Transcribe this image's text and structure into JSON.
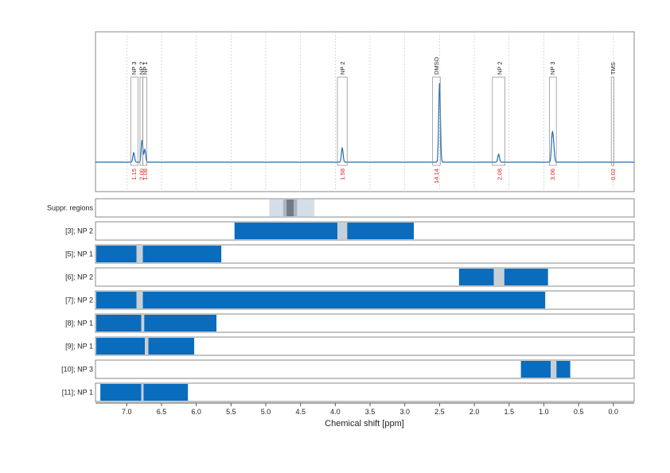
{
  "colors": {
    "spectrum": "#1f6fb5",
    "bar": "#0a6cbd",
    "peak_marker": "#c7d0d9",
    "suppr_light": "#d5dee7",
    "suppr_mid": "#a9b5c1",
    "suppr_dark": "#6f7a84",
    "integral_text": "#e0201a",
    "frame": "#888888",
    "grid": "#c8c8c8"
  },
  "chart_data": {
    "type": "line",
    "xlabel": "Chemical shift [ppm]",
    "x_reversed": true,
    "xlim": [
      7.45,
      -0.3
    ],
    "xticks": [
      7.0,
      6.5,
      6.0,
      5.5,
      5.0,
      4.5,
      4.0,
      3.5,
      3.0,
      2.5,
      2.0,
      1.5,
      1.0,
      0.5,
      0.0
    ],
    "xtick_labels": [
      "7.0",
      "6.5",
      "6.0",
      "5.5",
      "5.0",
      "4.5",
      "4.0",
      "3.5",
      "3.0",
      "2.5",
      "2.0",
      "1.5",
      "1.0",
      "0.5",
      "0.0"
    ],
    "grid": true,
    "spectrum_peaks": [
      {
        "ppm": 6.9,
        "height": 0.12
      },
      {
        "ppm": 6.78,
        "height": 0.28
      },
      {
        "ppm": 6.74,
        "height": 0.16
      },
      {
        "ppm": 3.9,
        "height": 0.18
      },
      {
        "ppm": 2.5,
        "height": 1.0
      },
      {
        "ppm": 1.65,
        "height": 0.1
      },
      {
        "ppm": 0.88,
        "height": 0.32
      },
      {
        "ppm": 0.86,
        "height": 0.2
      }
    ],
    "annotations": [
      {
        "label": "NP 3",
        "ppm": 6.9,
        "box": [
          6.94,
          6.84
        ],
        "integral": "1.15"
      },
      {
        "label": "NP 2",
        "ppm": 6.79,
        "box": [
          6.81,
          6.77
        ],
        "integral": "2.00"
      },
      {
        "label": "NP 1",
        "ppm": 6.74,
        "box": [
          6.77,
          6.71
        ],
        "integral": "1.08"
      },
      {
        "label": "NP 2",
        "ppm": 3.9,
        "box": [
          3.97,
          3.83
        ],
        "integral": "1.58"
      },
      {
        "label": "DMSO",
        "ppm": 2.55,
        "box": [
          2.6,
          2.49
        ],
        "integral": "14.14"
      },
      {
        "label": "NP 2",
        "ppm": 1.64,
        "box": [
          1.74,
          1.56
        ],
        "integral": "2.08"
      },
      {
        "label": "NP 3",
        "ppm": 0.88,
        "box": [
          0.92,
          0.82
        ],
        "integral": "3.06"
      },
      {
        "label": "TMS",
        "ppm": 0.01,
        "box": [
          0.03,
          -0.01
        ],
        "integral": "0.02"
      }
    ],
    "suppression": {
      "label": "Suppr. regions",
      "light": [
        4.95,
        4.3
      ],
      "mid": [
        4.75,
        4.55
      ],
      "dark": [
        4.7,
        4.6
      ]
    },
    "rows": [
      {
        "label": "[3]; NP 2",
        "ranges": [
          [
            5.45,
            3.97
          ],
          [
            3.83,
            2.87
          ]
        ],
        "marker": [
          3.97,
          3.83
        ]
      },
      {
        "label": "[5]; NP 1",
        "ranges": [
          [
            7.45,
            6.86
          ],
          [
            6.77,
            5.64
          ]
        ],
        "marker": [
          6.86,
          6.77
        ]
      },
      {
        "label": "[6]; NP 2",
        "ranges": [
          [
            2.22,
            1.72
          ],
          [
            1.57,
            0.94
          ]
        ],
        "marker": [
          1.72,
          1.57
        ]
      },
      {
        "label": "[7]; NP 2",
        "ranges": [
          [
            7.45,
            6.86
          ],
          [
            6.77,
            0.98
          ]
        ],
        "marker": [
          6.86,
          6.77
        ]
      },
      {
        "label": "[8]; NP 1",
        "ranges": [
          [
            7.45,
            6.79
          ],
          [
            6.75,
            5.71
          ]
        ],
        "marker": [
          6.79,
          6.75
        ]
      },
      {
        "label": "[9]; NP 1",
        "ranges": [
          [
            7.45,
            6.74
          ],
          [
            6.69,
            6.03
          ]
        ],
        "marker": [
          6.74,
          6.69
        ]
      },
      {
        "label": "[10]; NP 3",
        "ranges": [
          [
            1.33,
            0.9
          ],
          [
            0.82,
            0.62
          ]
        ],
        "marker": [
          0.9,
          0.82
        ]
      },
      {
        "label": "[11]; NP 1",
        "ranges": [
          [
            7.38,
            6.79
          ],
          [
            6.76,
            6.12
          ]
        ],
        "marker": [
          6.79,
          6.76
        ]
      }
    ]
  }
}
